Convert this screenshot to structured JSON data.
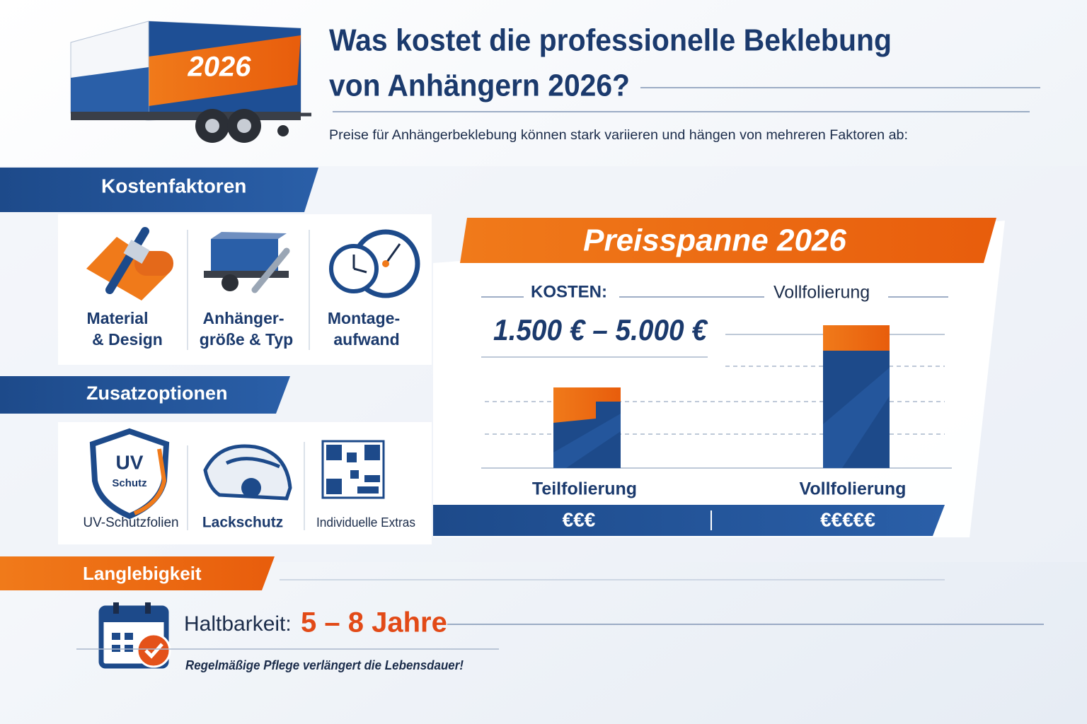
{
  "header": {
    "title_lines": [
      "Was kostet die professionelle Beklebung",
      "von Anhängern 2026?"
    ],
    "trailer_label": "2026",
    "subtitle": "Preise für Anhängerbeklebung können stark variieren und hängen von mehreren Faktoren ab:"
  },
  "cost_factors": {
    "heading": "Kostenfaktoren",
    "items": [
      [
        "Material",
        "& Design"
      ],
      [
        "Anhänger-",
        "größe & Typ"
      ],
      [
        "Montage-",
        "aufwand"
      ]
    ]
  },
  "extras": {
    "heading": "Zusatzoptionen",
    "badge": [
      "UV",
      "Schutz"
    ],
    "items": [
      "UV-Schutzfolien",
      "Lackschutz",
      "Individuelle Extras"
    ]
  },
  "price": {
    "heading": "Preisspanne 2026",
    "cost_label": "KOSTEN:",
    "cost_value": "1.500 € – 5.000 €",
    "top_label": "Vollfolierung",
    "options": [
      {
        "label": "Teilfolierung",
        "price_level": "€€€"
      },
      {
        "label": "Vollfolierung",
        "price_level": "€€€€€"
      }
    ]
  },
  "durability": {
    "heading": "Langlebigkeit",
    "label": "Haltbarkeit:",
    "value": "5 – 8 Jahre",
    "note": "Regelmäßige Pflege verlängert die Lebensdauer!"
  }
}
